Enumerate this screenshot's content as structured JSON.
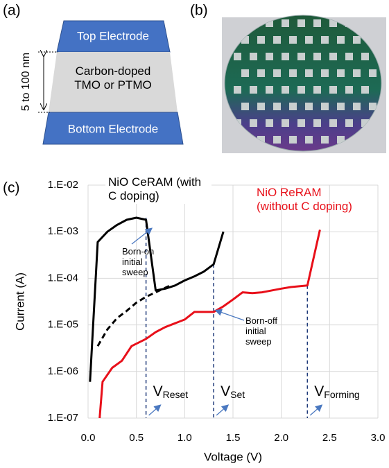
{
  "panel_labels": [
    "(a)",
    "(b)",
    "(c)"
  ],
  "diagram": {
    "top": "Top Electrode",
    "middle": "Carbon-doped TMO or PTMO",
    "bottom": "Bottom Electrode",
    "thickness": "5 to 100 nm"
  },
  "chart_data": {
    "type": "line",
    "x_label": "Voltage (V)",
    "y_label": "Current (A)",
    "xlim": [
      0,
      3
    ],
    "ylim": [
      1e-07,
      0.01
    ],
    "y_log": true,
    "grid": true,
    "xticks": [
      {
        "value": 0,
        "label": "0.0"
      },
      0.5,
      {
        "value": 1,
        "label": "1.0"
      },
      1.5,
      {
        "value": 2,
        "label": "2.0"
      },
      2.5,
      {
        "value": 3,
        "label": "3.0"
      }
    ],
    "yticks": [
      {
        "value": 1e-07,
        "label": "1.E-07"
      },
      {
        "value": 1e-06,
        "label": "1.E-06"
      },
      {
        "value": 1e-05,
        "label": "1.E-05"
      },
      {
        "value": 0.0001,
        "label": "1.E-04"
      },
      {
        "value": 0.001,
        "label": "1.E-03"
      },
      {
        "value": 0.01,
        "label": "1.E-02"
      }
    ],
    "series": [
      {
        "name": "NiO CeRAM (with C doping)",
        "color": "#000000",
        "dashed": false,
        "x": [
          0.02,
          0.1,
          0.2,
          0.3,
          0.4,
          0.5,
          0.6,
          0.7,
          0.8,
          0.9,
          1.0,
          1.1,
          1.2,
          1.3,
          1.4
        ],
        "values": [
          6e-07,
          0.0006,
          0.001,
          0.0014,
          0.0018,
          0.002,
          0.0018,
          5.5e-05,
          6e-05,
          7e-05,
          9e-05,
          0.00011,
          0.00014,
          0.0002,
          0.001
        ]
      },
      {
        "color": "#000000",
        "dashed": true,
        "x": [
          0.1,
          0.2,
          0.3,
          0.4,
          0.5,
          0.6,
          0.7,
          0.85
        ],
        "values": [
          3.5e-06,
          8e-06,
          1.4e-05,
          2e-05,
          3e-05,
          4e-05,
          5e-05,
          7e-05
        ]
      },
      {
        "name": "NiO ReRAM (without C doping)",
        "color": "#e8101a",
        "dashed": false,
        "x": [
          0.12,
          0.15,
          0.25,
          0.35,
          0.45,
          0.6,
          0.7,
          0.8,
          1.0,
          1.1,
          1.3,
          1.4,
          1.5,
          1.6,
          1.7,
          1.8,
          2.0,
          2.1,
          2.27,
          2.4
        ],
        "values": [
          1e-07,
          6e-07,
          1.2e-06,
          1.7e-06,
          3.5e-06,
          5e-06,
          7e-06,
          9e-06,
          1.3e-05,
          1.9e-05,
          1.9e-05,
          2.5e-05,
          3.5e-05,
          5e-05,
          4.8e-05,
          5e-05,
          6e-05,
          6.5e-05,
          7e-05,
          0.0011
        ]
      }
    ],
    "markers": [
      {
        "x": 0.6,
        "y": 0.002,
        "symbol": "V",
        "subscript": "Reset"
      },
      {
        "x": 1.3,
        "y": 0.0002,
        "symbol": "V",
        "subscript": "Set"
      },
      {
        "x": 2.27,
        "y": 7e-05,
        "symbol": "V",
        "subscript": "Forming"
      }
    ],
    "annotations": [
      "Born-on initial sweep",
      "Born-off initial sweep"
    ]
  }
}
